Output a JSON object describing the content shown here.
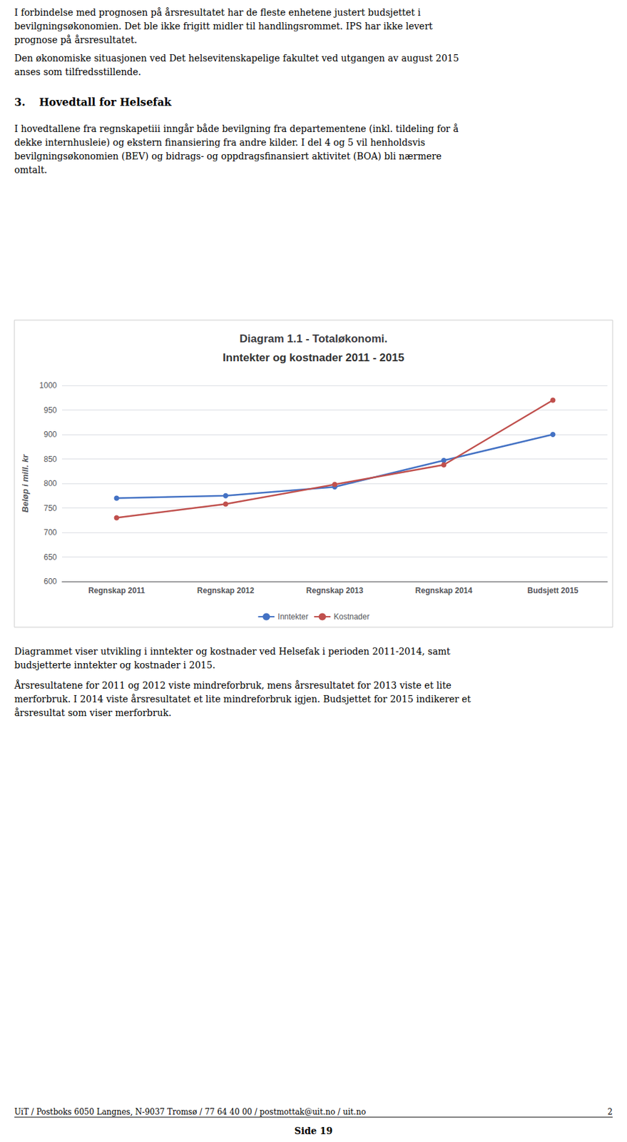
{
  "chart_data": {
    "type": "line",
    "title": "Diagram 1.1 - Totaløkonomi.",
    "subtitle": "Inntekter og kostnader 2011 - 2015",
    "categories": [
      "Regnskap 2011",
      "Regnskap 2012",
      "Regnskap 2013",
      "Regnskap 2014",
      "Budsjett 2015"
    ],
    "series": [
      {
        "name": "Inntekter",
        "color": "#4472C4",
        "marker": "circle",
        "values": [
          770,
          775,
          793,
          847,
          900
        ]
      },
      {
        "name": "Kostnader",
        "color": "#C0504D",
        "marker": "circle",
        "values": [
          730,
          758,
          798,
          838,
          970
        ]
      }
    ],
    "ylabel": "Beløp i mill. kr",
    "ylim": [
      600,
      1000
    ],
    "yticks": [
      600,
      650,
      700,
      750,
      800,
      850,
      900,
      950,
      1000
    ],
    "grid": true,
    "legend": "bottom",
    "annotations": [
      "I forbindelse med prognosen på årsresultatet har de fleste enhetene justert budsjettet i",
      "bevilgningsøkonomien. Det ble ikke frigitt midler til handlingsrommet. IPS har ikke levert",
      "prognose på årsresultatet.",
      "Den økonomiske situasjonen ved Det helsevitenskapelige fakultet ved utgangen av august 2015",
      "anses som tilfredsstillende.",
      "3.",
      "Hovedtall for Helsefak",
      "I hovedtallene fra regnskapetiii inngår både bevilgning fra departementene (inkl. tildeling for å",
      "dekke internhusleie) og ekstern finansiering fra andre kilder. I del 4 og 5 vil henholdsvis",
      "bevilgningsøkonomien (BEV) og bidrags- og oppdragsfinansiert aktivitet (BOA) bli nærmere",
      "omtalt.",
      "Diagrammet viser utvikling i inntekter og kostnader ved Helsefak i perioden 2011-2014, samt",
      "budsjetterte inntekter og kostnader i 2015.",
      "Årsresultatene for 2011 og 2012 viste mindreforbruk, mens årsresultatet for 2013 viste et lite",
      "merforbruk. I 2014 viste årsresultatet et lite mindreforbruk igjen. Budsjettet for 2015 indikerer et",
      "årsresultat som viser merforbruk.",
      "UiT / Postboks 6050 Langnes, N-9037 Tromsø / 77 64 40 00 / postmottak@uit.no / uit.no",
      "2",
      "Side 19"
    ]
  }
}
